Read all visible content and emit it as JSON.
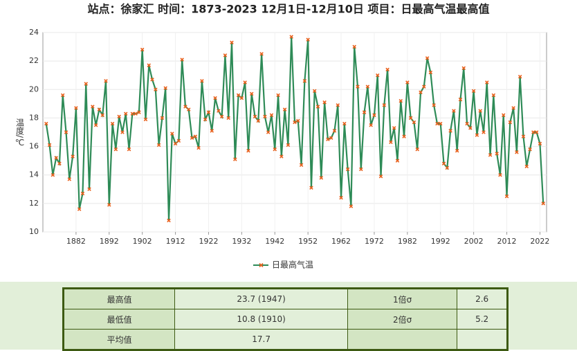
{
  "chart_data": {
    "type": "line",
    "title": "站点：徐家汇 时间：1873-2023  12月1日-12月10日 项目：日最高气温最高值",
    "y_label": "温度/℃",
    "x": [
      1873,
      1874,
      1875,
      1876,
      1877,
      1878,
      1879,
      1880,
      1881,
      1882,
      1883,
      1884,
      1885,
      1886,
      1887,
      1888,
      1889,
      1890,
      1891,
      1892,
      1893,
      1894,
      1895,
      1896,
      1897,
      1898,
      1899,
      1900,
      1901,
      1902,
      1903,
      1904,
      1905,
      1906,
      1907,
      1908,
      1909,
      1910,
      1911,
      1912,
      1913,
      1914,
      1915,
      1916,
      1917,
      1918,
      1919,
      1920,
      1921,
      1922,
      1923,
      1924,
      1925,
      1926,
      1927,
      1928,
      1929,
      1930,
      1931,
      1932,
      1933,
      1934,
      1935,
      1936,
      1937,
      1938,
      1939,
      1940,
      1941,
      1942,
      1943,
      1944,
      1945,
      1946,
      1947,
      1948,
      1949,
      1950,
      1951,
      1952,
      1953,
      1954,
      1955,
      1956,
      1957,
      1958,
      1959,
      1960,
      1961,
      1962,
      1963,
      1964,
      1965,
      1966,
      1967,
      1968,
      1969,
      1970,
      1971,
      1972,
      1973,
      1974,
      1975,
      1976,
      1977,
      1978,
      1979,
      1980,
      1981,
      1982,
      1983,
      1984,
      1985,
      1986,
      1987,
      1988,
      1989,
      1990,
      1991,
      1992,
      1993,
      1994,
      1995,
      1996,
      1997,
      1998,
      1999,
      2000,
      2001,
      2002,
      2003,
      2004,
      2005,
      2006,
      2007,
      2008,
      2009,
      2010,
      2011,
      2012,
      2013,
      2014,
      2015,
      2016,
      2017,
      2018,
      2019,
      2020,
      2021,
      2022,
      2023
    ],
    "series": [
      {
        "name": "日最高气温",
        "color": "#2e8b57",
        "marker_color": "#e8601c",
        "values": [
          17.6,
          16.1,
          14.0,
          15.2,
          14.8,
          19.6,
          17.0,
          13.7,
          15.3,
          18.7,
          11.6,
          12.7,
          20.4,
          13.0,
          18.8,
          17.5,
          18.6,
          18.2,
          20.6,
          11.9,
          17.6,
          15.8,
          18.1,
          17.0,
          18.3,
          15.8,
          18.3,
          18.3,
          18.4,
          22.8,
          17.9,
          21.7,
          20.7,
          20.0,
          16.1,
          18.0,
          20.1,
          10.8,
          16.9,
          16.2,
          16.4,
          22.1,
          18.8,
          18.6,
          16.6,
          16.7,
          15.9,
          20.6,
          17.9,
          18.4,
          17.1,
          19.4,
          18.5,
          18.1,
          22.4,
          18.0,
          23.3,
          15.1,
          19.6,
          19.4,
          20.5,
          15.7,
          19.7,
          18.1,
          17.8,
          22.5,
          18.1,
          17.0,
          18.2,
          15.8,
          19.6,
          15.3,
          18.6,
          16.1,
          23.7,
          17.7,
          17.8,
          14.7,
          20.6,
          23.5,
          13.1,
          19.9,
          18.8,
          13.8,
          19.1,
          16.5,
          16.6,
          17.1,
          18.9,
          12.4,
          17.6,
          14.4,
          11.8,
          23.0,
          20.2,
          14.4,
          18.4,
          20.2,
          17.5,
          18.2,
          21.0,
          13.9,
          18.9,
          21.4,
          16.3,
          17.3,
          15.0,
          19.2,
          16.7,
          20.5,
          18.0,
          17.7,
          15.8,
          19.8,
          20.2,
          22.2,
          21.2,
          18.9,
          17.6,
          17.6,
          14.8,
          14.5,
          17.1,
          18.5,
          15.7,
          19.3,
          21.5,
          17.6,
          17.3,
          19.9,
          16.8,
          18.5,
          17.0,
          20.5,
          15.4,
          19.6,
          15.5,
          14.0,
          18.2,
          12.5,
          17.7,
          18.7,
          15.6,
          20.9,
          16.7,
          14.6,
          15.8,
          17.0,
          17.0,
          16.2,
          12.0
        ]
      }
    ],
    "xlim": [
      1872,
      2024
    ],
    "xticks": [
      1882,
      1892,
      1902,
      1912,
      1922,
      1932,
      1942,
      1952,
      1962,
      1972,
      1982,
      1992,
      2002,
      2012,
      2022
    ],
    "ylim": [
      10,
      24
    ],
    "yticks": [
      10,
      12,
      14,
      16,
      18,
      20,
      22,
      24
    ],
    "grid": true,
    "legend": "bottom"
  },
  "table": {
    "rows": [
      [
        "最高值",
        "23.7 (1947)",
        "1倍σ",
        "2.6"
      ],
      [
        "最低值",
        "10.8 (1910)",
        "2倍σ",
        "5.2"
      ],
      [
        "平均值",
        "17.7",
        null,
        null
      ]
    ]
  }
}
